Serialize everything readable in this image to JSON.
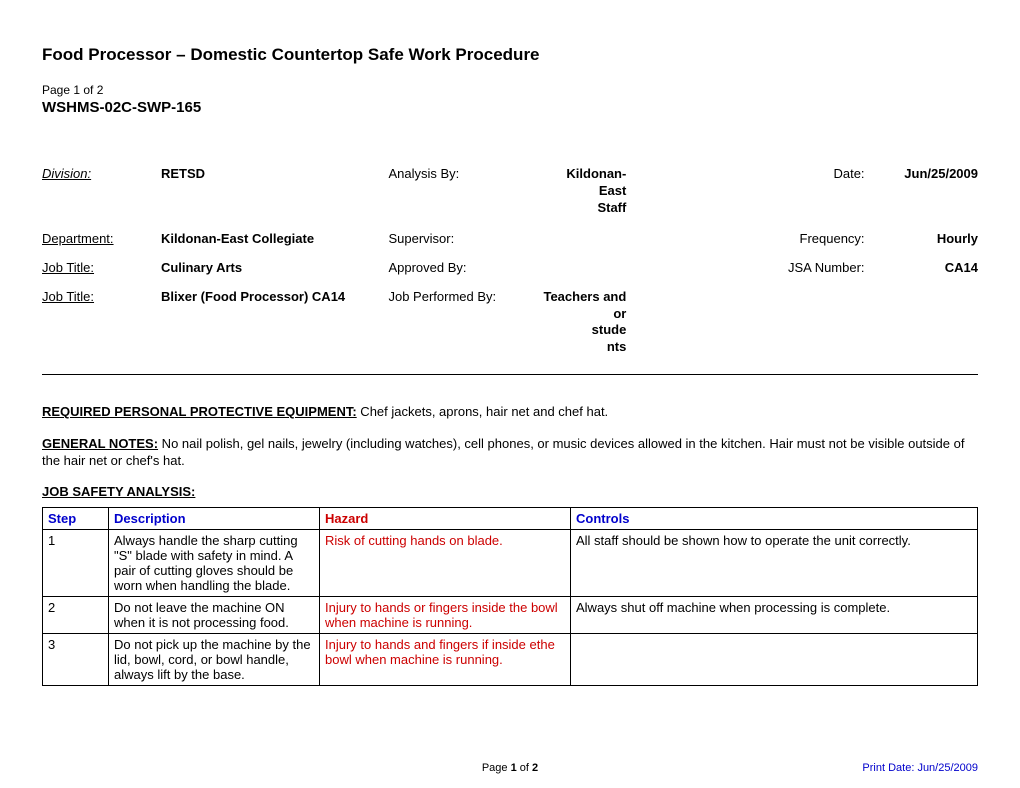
{
  "title": "Food Processor – Domestic Countertop Safe Work Procedure",
  "page_count": "Page 1 of 2",
  "doc_code": "WSHMS-02C-SWP-165",
  "meta": {
    "division_label": "Division:",
    "division_value": "RETSD",
    "analysis_by_label": "Analysis By:",
    "analysis_by_value": "Kildonan-East Staff",
    "date_label": "Date:",
    "date_value": "Jun/25/2009",
    "department_label": "Department:",
    "department_value": "Kildonan-East Collegiate",
    "supervisor_label": "Supervisor:",
    "supervisor_value": "",
    "frequency_label": "Frequency:",
    "frequency_value": "Hourly",
    "job_title1_label": "Job Title:",
    "job_title1_value": "Culinary Arts",
    "approved_by_label": "Approved By:",
    "approved_by_value": "",
    "jsa_number_label": "JSA Number:",
    "jsa_number_value": "CA14",
    "job_title2_label": "Job Title:",
    "job_title2_value": "Blixer (Food Processor) CA14",
    "performed_by_label": "Job Performed By:",
    "performed_by_value": "Teachers and or students"
  },
  "ppe": {
    "label": "REQUIRED PERSONAL PROTECTIVE EQUIPMENT:",
    "text": "  Chef jackets, aprons, hair net and chef hat."
  },
  "notes": {
    "label": "GENERAL NOTES:",
    "text": "  No nail polish, gel nails, jewelry (including watches), cell phones, or music devices allowed in the kitchen. Hair must not be visible outside of the hair net or chef's hat."
  },
  "jsa": {
    "label": "JOB SAFETY ANALYSIS:",
    "headers": {
      "step": "Step",
      "description": "Description",
      "hazard": "Hazard",
      "controls": "Controls"
    },
    "rows": [
      {
        "step": "1",
        "description": "Always handle the sharp cutting \"S\" blade with safety in mind. A pair of cutting gloves should be worn when handling the blade.",
        "hazard": "Risk of cutting hands on blade.",
        "controls": "All staff should be shown how to operate the unit correctly."
      },
      {
        "step": "2",
        "description": "Do not leave the machine ON when it is not processing food.",
        "hazard": "Injury to hands or fingers inside the bowl when machine is running.",
        "controls": "Always shut off machine when processing is complete."
      },
      {
        "step": "3",
        "description": "Do not pick up the machine by the lid, bowl, cord, or bowl handle, always lift by the base.",
        "hazard": "Injury to hands and fingers if inside ethe bowl when machine is running.",
        "controls": ""
      }
    ]
  },
  "footer": {
    "page": "Page 1 of 2",
    "print": "Print Date: Jun/25/2009"
  }
}
